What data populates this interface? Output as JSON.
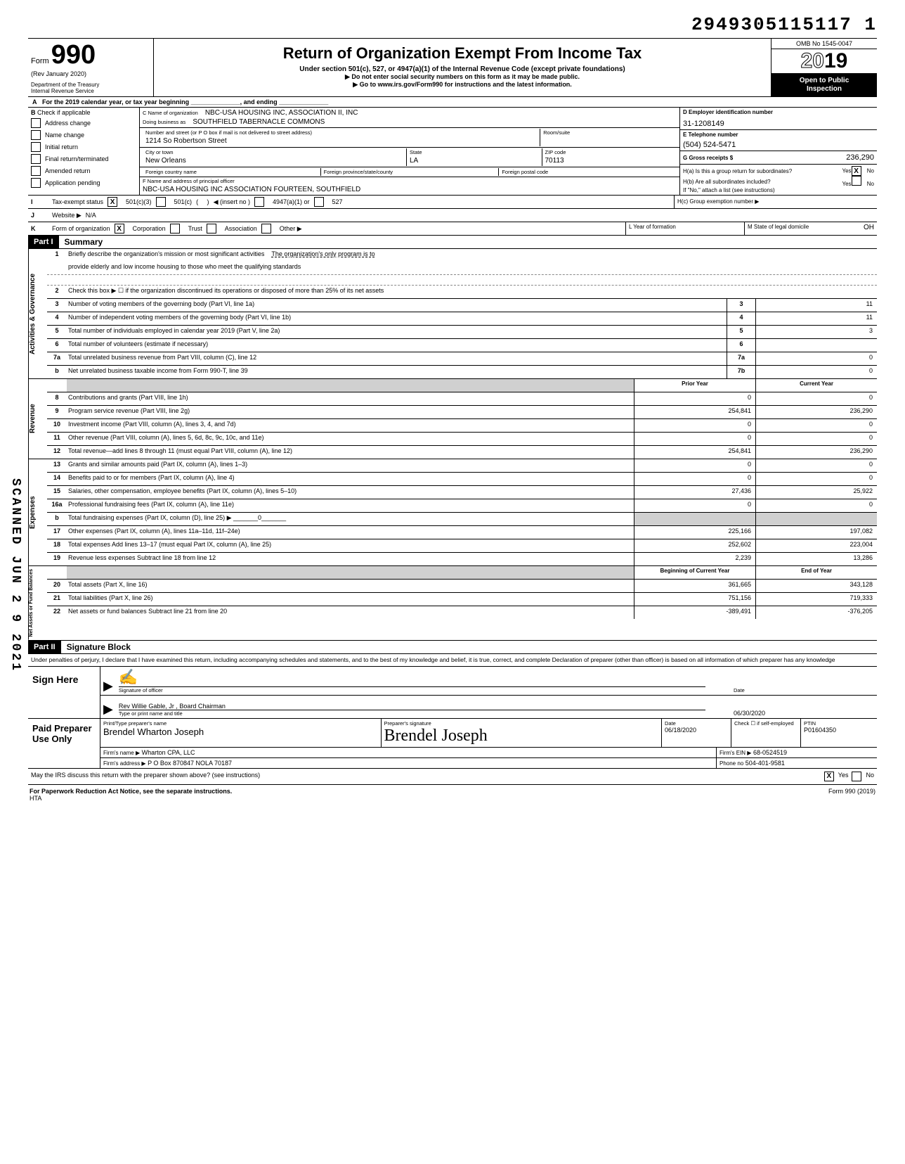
{
  "header_id": "2949305115117 1",
  "omb": "OMB No 1545-0047",
  "form_no": "990",
  "form_prefix": "Form",
  "rev": "(Rev January 2020)",
  "dept1": "Department of the Treasury",
  "dept2": "Internal Revenue Service",
  "title": "Return of Organization Exempt From Income Tax",
  "sub1": "Under section 501(c), 527, or 4947(a)(1) of the Internal Revenue Code (except private foundations)",
  "sub2": "▶ Do not enter social security numbers on this form as it may be made public.",
  "sub3": "▶ Go to www.irs.gov/Form990 for instructions and the latest information.",
  "year_prefix": "20",
  "year_suffix": "19",
  "inspection1": "Open to Public",
  "inspection2": "Inspection",
  "row_a": "For the 2019 calendar year, or tax year beginning ______________, and ending ______________",
  "col_b_header": "Check if applicable",
  "col_b_items": [
    "Address change",
    "Name change",
    "Initial return",
    "Final return/terminated",
    "Amended return",
    "Application pending"
  ],
  "c_name_label": "C Name of organization",
  "c_name": "NBC-USA HOUSING INC, ASSOCIATION II, INC",
  "dba_label": "Doing business as",
  "dba": "SOUTHFIELD TABERNACLE COMMONS",
  "street_label": "Number and street (or P O box if mail is not delivered to street address)",
  "room_label": "Room/suite",
  "street": "1214 So Robertson Street",
  "city_label": "City or town",
  "city": "New Orleans",
  "state_label": "State",
  "state": "LA",
  "zip_label": "ZIP code",
  "zip": "70113",
  "foreign_country": "Foreign country name",
  "foreign_prov": "Foreign province/state/county",
  "foreign_postal": "Foreign postal code",
  "f_label": "F Name and address of principal officer",
  "f_val": "NBC-USA HOUSING INC ASSOCIATION FOURTEEN, SOUTHFIELD",
  "d_label": "D Employer identification number",
  "d_val": "31-1208149",
  "e_label": "E Telephone number",
  "e_val": "(504) 524-5471",
  "g_label": "G Gross receipts $",
  "g_val": "236,290",
  "h_a": "H(a) Is this a group return for subordinates?",
  "h_b": "H(b) Are all subordinates included?",
  "h_note": "If \"No,\" attach a list (see instructions)",
  "h_c": "H(c) Group exemption number ▶",
  "yes": "Yes",
  "no": "No",
  "i_label": "Tax-exempt status",
  "i_501c3": "501(c)(3)",
  "i_501c": "501(c)",
  "i_insert": "◀ (insert no )",
  "i_4947": "4947(a)(1) or",
  "i_527": "527",
  "j_label": "Website ▶",
  "j_val": "N/A",
  "k_label": "Form of organization",
  "k_corp": "Corporation",
  "k_trust": "Trust",
  "k_assoc": "Association",
  "k_other": "Other ▶",
  "l_label": "L Year of formation",
  "m_label": "M State of legal domicile",
  "m_val": "OH",
  "part1": "Part I",
  "part1_title": "Summary",
  "part2": "Part II",
  "part2_title": "Signature Block",
  "vtab1": "Activities & Governance",
  "vtab2": "Revenue",
  "vtab3": "Expenses",
  "vtab4": "Net Assets or Fund Balances",
  "line1_text": "Briefly describe the organization's mission or most significant activities",
  "line1_val": "The organization's only program is to",
  "line1_cont": "provide elderly and low income housing to those who meet the qualifying standards",
  "line2": "Check this box ▶ ☐ if the organization discontinued its operations or disposed of more than 25% of its net assets",
  "lines_gov": [
    {
      "n": "3",
      "t": "Number of voting members of the governing body (Part VI, line 1a)",
      "b": "3",
      "v": "11"
    },
    {
      "n": "4",
      "t": "Number of independent voting members of the governing body (Part VI, line 1b)",
      "b": "4",
      "v": "11"
    },
    {
      "n": "5",
      "t": "Total number of individuals employed in calendar year 2019 (Part V, line 2a)",
      "b": "5",
      "v": "3"
    },
    {
      "n": "6",
      "t": "Total number of volunteers (estimate if necessary)",
      "b": "6",
      "v": ""
    },
    {
      "n": "7a",
      "t": "Total unrelated business revenue from Part VIII, column (C), line 12",
      "b": "7a",
      "v": "0"
    },
    {
      "n": "b",
      "t": "Net unrelated business taxable income from Form 990-T, line 39",
      "b": "7b",
      "v": "0"
    }
  ],
  "prior_year": "Prior Year",
  "current_year": "Current Year",
  "lines_rev": [
    {
      "n": "8",
      "t": "Contributions and grants (Part VIII, line 1h)",
      "p": "0",
      "c": "0"
    },
    {
      "n": "9",
      "t": "Program service revenue (Part VIII, line 2g)",
      "p": "254,841",
      "c": "236,290"
    },
    {
      "n": "10",
      "t": "Investment income (Part VIII, column (A), lines 3, 4, and 7d)",
      "p": "0",
      "c": "0"
    },
    {
      "n": "11",
      "t": "Other revenue (Part VIII, column (A), lines 5, 6d, 8c, 9c, 10c, and 11e)",
      "p": "0",
      "c": "0"
    },
    {
      "n": "12",
      "t": "Total revenue—add lines 8 through 11 (must equal Part VIII, column (A), line 12)",
      "p": "254,841",
      "c": "236,290"
    }
  ],
  "lines_exp": [
    {
      "n": "13",
      "t": "Grants and similar amounts paid (Part IX, column (A), lines 1–3)",
      "p": "0",
      "c": "0"
    },
    {
      "n": "14",
      "t": "Benefits paid to or for members (Part IX, column (A), line 4)",
      "p": "0",
      "c": "0"
    },
    {
      "n": "15",
      "t": "Salaries, other compensation, employee benefits (Part IX, column (A), lines 5–10)",
      "p": "27,436",
      "c": "25,922"
    },
    {
      "n": "16a",
      "t": "Professional fundraising fees (Part IX, column (A), line 11e)",
      "p": "0",
      "c": "0"
    },
    {
      "n": "b",
      "t": "Total fundraising expenses (Part IX, column (D), line 25) ▶ _______0_______",
      "p": "",
      "c": "",
      "shade": true
    },
    {
      "n": "17",
      "t": "Other expenses (Part IX, column (A), lines 11a–11d, 11f–24e)",
      "p": "225,166",
      "c": "197,082"
    },
    {
      "n": "18",
      "t": "Total expenses Add lines 13–17 (must equal Part IX, column (A), line 25)",
      "p": "252,602",
      "c": "223,004"
    },
    {
      "n": "19",
      "t": "Revenue less expenses Subtract line 18 from line 12",
      "p": "2,239",
      "c": "13,286"
    }
  ],
  "boy": "Beginning of Current Year",
  "eoy": "End of Year",
  "lines_net": [
    {
      "n": "20",
      "t": "Total assets (Part X, line 16)",
      "p": "361,665",
      "c": "343,128"
    },
    {
      "n": "21",
      "t": "Total liabilities (Part X, line 26)",
      "p": "751,156",
      "c": "719,333"
    },
    {
      "n": "22",
      "t": "Net assets or fund balances Subtract line 21 from line 20",
      "p": "-389,491",
      "c": "-376,205"
    }
  ],
  "perjury": "Under penalties of perjury, I declare that I have examined this return, including accompanying schedules and statements, and to the best of my knowledge and belief, it is true, correct, and complete Declaration of preparer (other than officer) is based on all information of which preparer has any knowledge",
  "sign_here": "Sign Here",
  "sig_officer_label": "Signature of officer",
  "sig_date_label": "Date",
  "sig_name": "Rev Willie Gable, Jr , Board Chairman",
  "sig_date": "06/30/2020",
  "sig_type_label": "Type or print name and title",
  "paid_preparer": "Paid Preparer Use Only",
  "prep_name_label": "Print/Type preparer's name",
  "prep_name": "Brendel Wharton Joseph",
  "prep_sig_label": "Preparer's signature",
  "prep_sig": "Brendel Joseph",
  "prep_date": "06/18/2020",
  "check_if": "Check ☐ if self-employed",
  "ptin_label": "PTIN",
  "ptin": "P01604350",
  "firm_name_label": "Firm's name ▶",
  "firm_name": "Wharton CPA, LLC",
  "firm_ein_label": "Firm's EIN ▶",
  "firm_ein": "68-0524519",
  "firm_addr_label": "Firm's address ▶",
  "firm_addr": "P O Box 870847 NOLA 70187",
  "firm_phone_label": "Phone no",
  "firm_phone": "504-401-9581",
  "discuss": "May the IRS discuss this return with the preparer shown above? (see instructions)",
  "paperwork": "For Paperwork Reduction Act Notice, see the separate instructions.",
  "hta": "HTA",
  "form_foot": "Form 990 (2019)",
  "scanned": "SCANNED JUN 2 9 2021",
  "letter_a": "A",
  "letter_b": "B",
  "letter_i": "I",
  "letter_j": "J",
  "letter_k": "K"
}
